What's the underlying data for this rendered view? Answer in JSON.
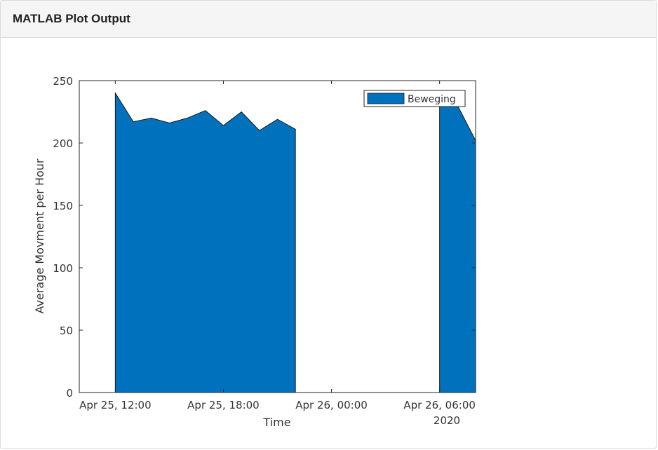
{
  "panel": {
    "title": "MATLAB Plot Output"
  },
  "chart_data": {
    "type": "area",
    "title": "",
    "xlabel": "Time",
    "ylabel": "Average Movment per Hour",
    "x_secondary_label": "2020",
    "ylim": [
      0,
      250
    ],
    "xlim": [
      "2020-04-25T10:00",
      "2020-04-26T08:00"
    ],
    "xticks": [
      {
        "value": "2020-04-25T12:00",
        "label": "Apr 25, 12:00"
      },
      {
        "value": "2020-04-25T18:00",
        "label": "Apr 25, 18:00"
      },
      {
        "value": "2020-04-26T00:00",
        "label": "Apr 26, 00:00"
      },
      {
        "value": "2020-04-26T06:00",
        "label": "Apr 26, 06:00"
      }
    ],
    "yticks": [
      0,
      50,
      100,
      150,
      200,
      250
    ],
    "legend": {
      "position": "top-right"
    },
    "grid": false,
    "series": [
      {
        "name": "Beweging",
        "color": "#0072BD",
        "segments": [
          {
            "x": [
              "2020-04-25T12:00",
              "2020-04-25T13:00",
              "2020-04-25T14:00",
              "2020-04-25T15:00",
              "2020-04-25T16:00",
              "2020-04-25T17:00",
              "2020-04-25T18:00",
              "2020-04-25T19:00",
              "2020-04-25T20:00",
              "2020-04-25T21:00",
              "2020-04-25T22:00"
            ],
            "y": [
              240,
              217,
              220,
              216,
              220,
              226,
              214,
              225,
              210,
              219,
              211
            ]
          },
          {
            "x": [
              "2020-04-26T06:00",
              "2020-04-26T07:00",
              "2020-04-26T08:00"
            ],
            "y": [
              240,
              230,
              202
            ]
          }
        ]
      }
    ]
  }
}
